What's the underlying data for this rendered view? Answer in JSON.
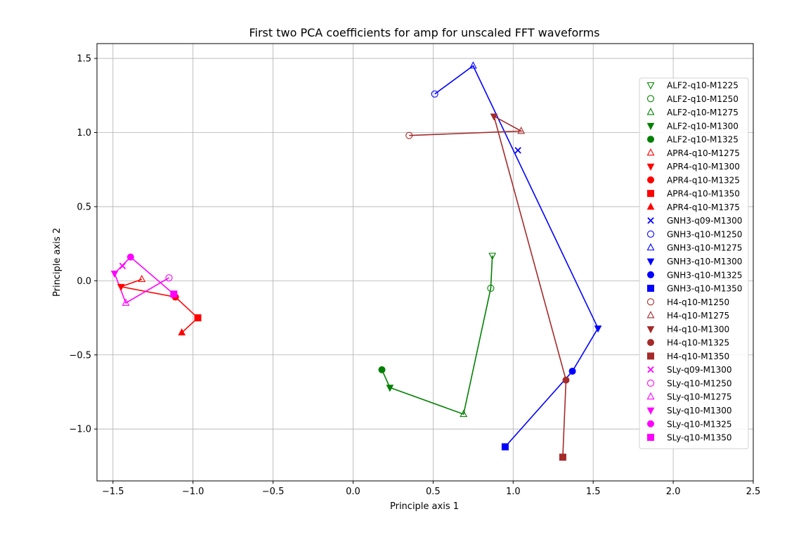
{
  "chart_data": {
    "type": "scatter",
    "title": "First two PCA coefficients for amp for unscaled FFT waveforms",
    "xlabel": "Principle axis 1",
    "ylabel": "Principle axis 2",
    "xlim": [
      -1.6,
      2.5
    ],
    "ylim": [
      -1.35,
      1.6
    ],
    "x_ticks": [
      -1.5,
      -1.0,
      -0.5,
      0.0,
      0.5,
      1.0,
      1.5,
      2.0,
      2.5
    ],
    "x_tick_labels": [
      "−1.5",
      "−1.0",
      "−0.5",
      "0.0",
      "0.5",
      "1.0",
      "1.5",
      "2.0",
      "2.5"
    ],
    "y_ticks": [
      -1.0,
      -0.5,
      0.0,
      0.5,
      1.0,
      1.5
    ],
    "y_tick_labels": [
      "−1.0",
      "−0.5",
      "0.0",
      "0.5",
      "1.0",
      "1.5"
    ],
    "grid": true,
    "legend_position": "right",
    "lines": [
      {
        "color": "#008000",
        "points": [
          [
            0.87,
            0.17
          ],
          [
            0.86,
            -0.05
          ],
          [
            0.69,
            -0.9
          ],
          [
            0.23,
            -0.72
          ],
          [
            0.18,
            -0.6
          ]
        ]
      },
      {
        "color": "#ff0000",
        "points": [
          [
            -1.32,
            0.01
          ],
          [
            -1.45,
            -0.04
          ],
          [
            -1.11,
            -0.11
          ],
          [
            -0.97,
            -0.25
          ],
          [
            -1.07,
            -0.35
          ]
        ]
      },
      {
        "color": "#0000ff",
        "points": [
          [
            0.51,
            1.26
          ],
          [
            0.75,
            1.45
          ],
          [
            1.53,
            -0.32
          ],
          [
            1.37,
            -0.61
          ],
          [
            0.95,
            -1.12
          ]
        ]
      },
      {
        "color": "#a52a2a",
        "points": [
          [
            0.35,
            0.98
          ],
          [
            1.05,
            1.01
          ],
          [
            0.88,
            1.11
          ],
          [
            1.33,
            -0.67
          ],
          [
            1.31,
            -1.19
          ]
        ]
      },
      {
        "color": "#ff00ff",
        "points": [
          [
            -1.15,
            0.02
          ],
          [
            -1.42,
            -0.15
          ],
          [
            -1.49,
            0.05
          ],
          [
            -1.39,
            0.16
          ],
          [
            -1.12,
            -0.09
          ]
        ]
      }
    ],
    "series": [
      {
        "name": "ALF2-q10-M1225",
        "color": "#008000",
        "marker": "tri-down-open",
        "points": [
          [
            0.87,
            0.17
          ]
        ]
      },
      {
        "name": "ALF2-q10-M1250",
        "color": "#008000",
        "marker": "circle-open",
        "points": [
          [
            0.86,
            -0.05
          ]
        ]
      },
      {
        "name": "ALF2-q10-M1275",
        "color": "#008000",
        "marker": "tri-up-open",
        "points": [
          [
            0.69,
            -0.9
          ]
        ]
      },
      {
        "name": "ALF2-q10-M1300",
        "color": "#008000",
        "marker": "tri-down",
        "points": [
          [
            0.23,
            -0.72
          ]
        ]
      },
      {
        "name": "ALF2-q10-M1325",
        "color": "#008000",
        "marker": "circle",
        "points": [
          [
            0.18,
            -0.6
          ]
        ]
      },
      {
        "name": "APR4-q10-M1275",
        "color": "#ff0000",
        "marker": "tri-up-open",
        "points": [
          [
            -1.32,
            0.01
          ]
        ]
      },
      {
        "name": "APR4-q10-M1300",
        "color": "#ff0000",
        "marker": "tri-down",
        "points": [
          [
            -1.45,
            -0.04
          ]
        ]
      },
      {
        "name": "APR4-q10-M1325",
        "color": "#ff0000",
        "marker": "circle",
        "points": [
          [
            -1.11,
            -0.11
          ]
        ]
      },
      {
        "name": "APR4-q10-M1350",
        "color": "#ff0000",
        "marker": "square",
        "points": [
          [
            -0.97,
            -0.25
          ]
        ]
      },
      {
        "name": "APR4-q10-M1375",
        "color": "#ff0000",
        "marker": "tri-up",
        "points": [
          [
            -1.07,
            -0.35
          ]
        ]
      },
      {
        "name": "GNH3-q09-M1300",
        "color": "#0000ff",
        "marker": "x",
        "points": [
          [
            1.03,
            0.88
          ]
        ]
      },
      {
        "name": "GNH3-q10-M1250",
        "color": "#0000ff",
        "marker": "circle-open",
        "points": [
          [
            0.51,
            1.26
          ]
        ]
      },
      {
        "name": "GNH3-q10-M1275",
        "color": "#0000ff",
        "marker": "tri-up-open",
        "points": [
          [
            0.75,
            1.45
          ]
        ]
      },
      {
        "name": "GNH3-q10-M1300",
        "color": "#0000ff",
        "marker": "tri-down",
        "points": [
          [
            1.53,
            -0.32
          ]
        ]
      },
      {
        "name": "GNH3-q10-M1325",
        "color": "#0000ff",
        "marker": "circle",
        "points": [
          [
            1.37,
            -0.61
          ]
        ]
      },
      {
        "name": "GNH3-q10-M1350",
        "color": "#0000ff",
        "marker": "square",
        "points": [
          [
            0.95,
            -1.12
          ]
        ]
      },
      {
        "name": "H4-q10-M1250",
        "color": "#a52a2a",
        "marker": "circle-open",
        "points": [
          [
            0.35,
            0.98
          ]
        ]
      },
      {
        "name": "H4-q10-M1275",
        "color": "#a52a2a",
        "marker": "tri-up-open",
        "points": [
          [
            1.05,
            1.01
          ]
        ]
      },
      {
        "name": "H4-q10-M1300",
        "color": "#a52a2a",
        "marker": "tri-down",
        "points": [
          [
            0.88,
            1.11
          ]
        ]
      },
      {
        "name": "H4-q10-M1325",
        "color": "#a52a2a",
        "marker": "circle",
        "points": [
          [
            1.33,
            -0.67
          ]
        ]
      },
      {
        "name": "H4-q10-M1350",
        "color": "#a52a2a",
        "marker": "square",
        "points": [
          [
            1.31,
            -1.19
          ]
        ]
      },
      {
        "name": "SLy-q09-M1300",
        "color": "#ff00ff",
        "marker": "x",
        "points": [
          [
            -1.44,
            0.1
          ]
        ]
      },
      {
        "name": "SLy-q10-M1250",
        "color": "#ff00ff",
        "marker": "circle-open",
        "points": [
          [
            -1.15,
            0.02
          ]
        ]
      },
      {
        "name": "SLy-q10-M1275",
        "color": "#ff00ff",
        "marker": "tri-up-open",
        "points": [
          [
            -1.42,
            -0.15
          ]
        ]
      },
      {
        "name": "SLy-q10-M1300",
        "color": "#ff00ff",
        "marker": "tri-down",
        "points": [
          [
            -1.49,
            0.05
          ]
        ]
      },
      {
        "name": "SLy-q10-M1325",
        "color": "#ff00ff",
        "marker": "circle",
        "points": [
          [
            -1.39,
            0.16
          ]
        ]
      },
      {
        "name": "SLy-q10-M1350",
        "color": "#ff00ff",
        "marker": "square",
        "points": [
          [
            -1.12,
            -0.09
          ]
        ]
      }
    ]
  }
}
